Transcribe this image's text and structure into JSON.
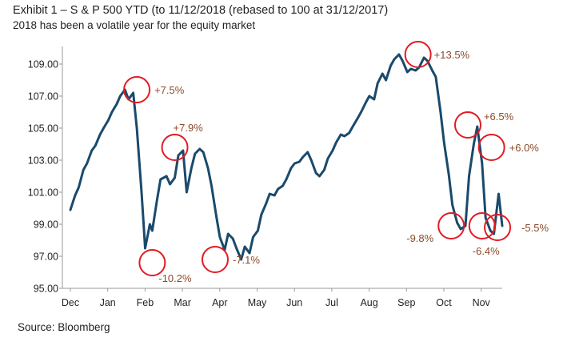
{
  "title": "Exhibit 1 – S & P 500 YTD (to 11/12/2018 (rebased to 100 at 31/12/2017)",
  "subtitle": "2018 has been a volatile year for the equity market",
  "source": "Source: Bloomberg",
  "colors": {
    "line": "#1a4a6b",
    "circle": "#e21b23",
    "annotation": "#8c4a2a",
    "axis": "#9a9a9a"
  },
  "chart_data": {
    "type": "line",
    "title": "Exhibit 1 – S & P 500 YTD (to 11/12/2018 (rebased to 100 at 31/12/2017)",
    "xlabel": "",
    "ylabel": "",
    "ylim": [
      95,
      110
    ],
    "grid": false,
    "y_ticks": [
      "95.00",
      "97.00",
      "99.00",
      "101.00",
      "103.00",
      "105.00",
      "107.00",
      "109.00"
    ],
    "x_ticks": [
      "Dec",
      "Jan",
      "Feb",
      "Mar",
      "Apr",
      "May",
      "Jun",
      "Jul",
      "Aug",
      "Sep",
      "Oct",
      "Nov"
    ],
    "x_range": [
      "2017-12-01",
      "2018-11-30"
    ],
    "series": [
      {
        "x": [
          "2017-12-01",
          "2017-12-05",
          "2017-12-08",
          "2017-12-12",
          "2017-12-15",
          "2017-12-19",
          "2017-12-22",
          "2017-12-26",
          "2017-12-29",
          "2018-01-02",
          "2018-01-05",
          "2018-01-09",
          "2018-01-12",
          "2018-01-16",
          "2018-01-19",
          "2018-01-23",
          "2018-01-26",
          "2018-01-30",
          "2018-02-02",
          "2018-02-06",
          "2018-02-08",
          "2018-02-12",
          "2018-02-15",
          "2018-02-20",
          "2018-02-23",
          "2018-02-27",
          "2018-03-02",
          "2018-03-06",
          "2018-03-09",
          "2018-03-13",
          "2018-03-16",
          "2018-03-20",
          "2018-03-23",
          "2018-03-27",
          "2018-03-30",
          "2018-04-03",
          "2018-04-06",
          "2018-04-10",
          "2018-04-13",
          "2018-04-17",
          "2018-04-20",
          "2018-04-24",
          "2018-04-27",
          "2018-05-01",
          "2018-05-04",
          "2018-05-08",
          "2018-05-11",
          "2018-05-15",
          "2018-05-18",
          "2018-05-22",
          "2018-05-25",
          "2018-05-29",
          "2018-06-01",
          "2018-06-05",
          "2018-06-08",
          "2018-06-12",
          "2018-06-15",
          "2018-06-19",
          "2018-06-22",
          "2018-06-26",
          "2018-06-29",
          "2018-07-03",
          "2018-07-06",
          "2018-07-10",
          "2018-07-13",
          "2018-07-17",
          "2018-07-20",
          "2018-07-24",
          "2018-07-27",
          "2018-07-31",
          "2018-08-03",
          "2018-08-07",
          "2018-08-10",
          "2018-08-14",
          "2018-08-17",
          "2018-08-21",
          "2018-08-24",
          "2018-08-28",
          "2018-08-31",
          "2018-09-04",
          "2018-09-07",
          "2018-09-11",
          "2018-09-14",
          "2018-09-18",
          "2018-09-21",
          "2018-09-25",
          "2018-09-28",
          "2018-10-02",
          "2018-10-05",
          "2018-10-09",
          "2018-10-12",
          "2018-10-16",
          "2018-10-19",
          "2018-10-23",
          "2018-10-26",
          "2018-10-30",
          "2018-11-02",
          "2018-11-06",
          "2018-11-09",
          "2018-11-13",
          "2018-11-16",
          "2018-11-20",
          "2018-11-23",
          "2018-11-27",
          "2018-11-30"
        ],
        "values": [
          99.9,
          100.8,
          101.3,
          102.4,
          102.8,
          103.6,
          103.9,
          104.6,
          105.0,
          105.5,
          106.0,
          106.5,
          107.0,
          107.4,
          106.8,
          107.2,
          105.0,
          101.0,
          97.5,
          99.0,
          98.6,
          100.5,
          101.8,
          102.0,
          101.5,
          101.9,
          103.3,
          103.6,
          101.0,
          102.5,
          103.4,
          103.7,
          103.5,
          102.5,
          101.4,
          99.5,
          98.2,
          97.4,
          98.4,
          98.1,
          97.5,
          96.8,
          97.6,
          97.2,
          98.2,
          98.6,
          99.6,
          100.3,
          100.9,
          100.8,
          101.2,
          101.4,
          101.8,
          102.5,
          102.8,
          102.9,
          103.2,
          103.5,
          103.0,
          102.2,
          102.0,
          102.4,
          103.1,
          103.6,
          104.1,
          104.6,
          104.5,
          104.7,
          105.1,
          105.6,
          106.0,
          106.6,
          107.0,
          106.8,
          107.8,
          108.4,
          108.0,
          108.9,
          109.3,
          109.6,
          109.2,
          108.5,
          108.7,
          108.6,
          108.8,
          109.4,
          109.2,
          108.6,
          108.2,
          106.0,
          104.1,
          102.1,
          100.2,
          99.1,
          98.7,
          98.9,
          102.0,
          104.0,
          105.1,
          102.8,
          99.4,
          98.6,
          98.4,
          100.9,
          98.9
        ]
      }
    ],
    "annotations": [
      {
        "label": "+7.5%",
        "x": "2018-01-26",
        "y": 107.4
      },
      {
        "label": "-10.2%",
        "x": "2018-02-08",
        "y": 96.6
      },
      {
        "label": "+7.9%",
        "x": "2018-02-27",
        "y": 103.8
      },
      {
        "label": "-7.1%",
        "x": "2018-04-02",
        "y": 96.8
      },
      {
        "label": "+13.5%",
        "x": "2018-09-20",
        "y": 109.6
      },
      {
        "label": "-9.8%",
        "x": "2018-10-18",
        "y": 98.9
      },
      {
        "label": "+6.5%",
        "x": "2018-11-01",
        "y": 105.2
      },
      {
        "label": "-6.4%",
        "x": "2018-11-13",
        "y": 98.9
      },
      {
        "label": "+6.0%",
        "x": "2018-11-21",
        "y": 103.8
      },
      {
        "label": "-5.5%",
        "x": "2018-11-26",
        "y": 98.8
      }
    ]
  }
}
